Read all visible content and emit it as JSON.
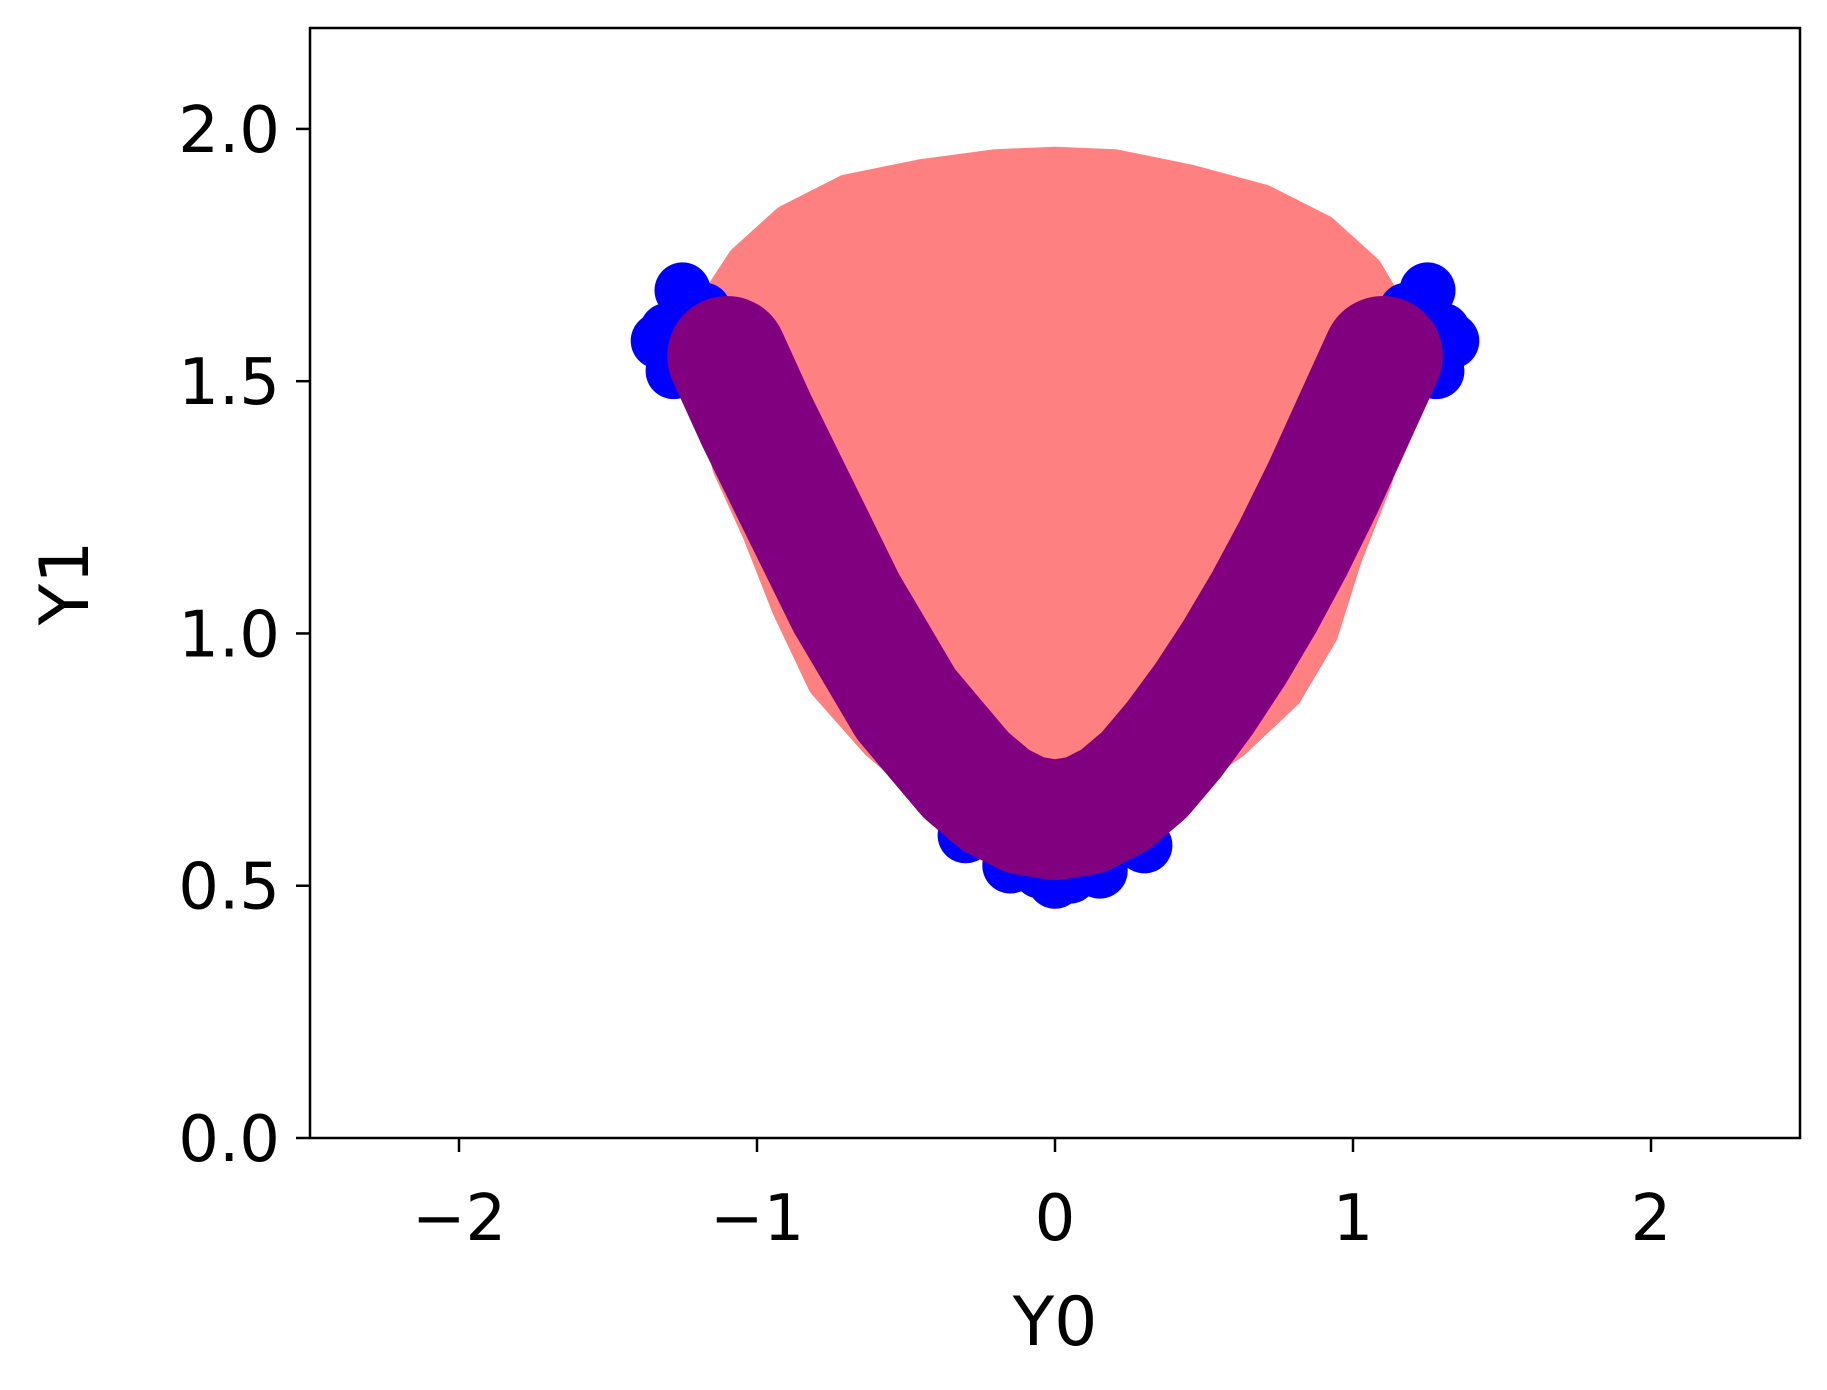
{
  "chart_data": {
    "type": "scatter",
    "title": "",
    "xlabel": "Y0",
    "ylabel": "Y1",
    "xlim": [
      -2.5,
      2.5
    ],
    "ylim": [
      0.0,
      2.2
    ],
    "x_ticks": [
      -2,
      -1,
      0,
      1,
      2
    ],
    "x_tick_labels": [
      "−2",
      "−1",
      "0",
      "1",
      "2"
    ],
    "y_ticks": [
      0.0,
      0.5,
      1.0,
      1.5,
      2.0
    ],
    "y_tick_labels": [
      "0.0",
      "0.5",
      "1.0",
      "1.5",
      "2.0"
    ],
    "grid": false,
    "legend": "none",
    "series": [
      {
        "color": "#ff8080",
        "kind": "filled-region",
        "outline": [
          [
            -1.15,
            1.65
          ],
          [
            -1.05,
            1.74
          ],
          [
            -0.9,
            1.82
          ],
          [
            -0.7,
            1.88
          ],
          [
            -0.45,
            1.91
          ],
          [
            -0.2,
            1.93
          ],
          [
            0.0,
            1.935
          ],
          [
            0.2,
            1.93
          ],
          [
            0.45,
            1.9
          ],
          [
            0.7,
            1.86
          ],
          [
            0.9,
            1.8
          ],
          [
            1.05,
            1.72
          ],
          [
            1.15,
            1.62
          ],
          [
            1.15,
            1.45
          ],
          [
            1.08,
            1.3
          ],
          [
            0.98,
            1.15
          ],
          [
            0.9,
            1.0
          ],
          [
            0.78,
            0.88
          ],
          [
            0.6,
            0.78
          ],
          [
            0.4,
            0.7
          ],
          [
            0.2,
            0.6
          ],
          [
            0.0,
            0.57
          ],
          [
            -0.2,
            0.6
          ],
          [
            -0.4,
            0.68
          ],
          [
            -0.6,
            0.78
          ],
          [
            -0.78,
            0.9
          ],
          [
            -0.9,
            1.05
          ],
          [
            -1.0,
            1.2
          ],
          [
            -1.1,
            1.33
          ],
          [
            -1.17,
            1.5
          ]
        ]
      },
      {
        "color": "#0000ff",
        "kind": "points",
        "points": [
          [
            -1.3,
            1.6
          ],
          [
            -1.25,
            1.68
          ],
          [
            -1.2,
            1.55
          ],
          [
            -1.28,
            1.52
          ],
          [
            -1.18,
            1.64
          ],
          [
            -1.33,
            1.58
          ],
          [
            -1.22,
            1.6
          ],
          [
            1.3,
            1.6
          ],
          [
            1.25,
            1.68
          ],
          [
            1.2,
            1.55
          ],
          [
            1.28,
            1.52
          ],
          [
            1.18,
            1.64
          ],
          [
            1.33,
            1.58
          ],
          [
            1.22,
            1.6
          ],
          [
            -0.3,
            0.6
          ],
          [
            -0.15,
            0.54
          ],
          [
            0.0,
            0.51
          ],
          [
            0.15,
            0.53
          ],
          [
            0.3,
            0.58
          ],
          [
            0.05,
            0.52
          ],
          [
            -0.05,
            0.53
          ]
        ]
      },
      {
        "color": "#800080",
        "kind": "band",
        "points": [
          [
            -1.1,
            1.55
          ],
          [
            -1.0,
            1.42
          ],
          [
            -0.9,
            1.3
          ],
          [
            -0.8,
            1.18
          ],
          [
            -0.7,
            1.06
          ],
          [
            -0.6,
            0.96
          ],
          [
            -0.5,
            0.86
          ],
          [
            -0.4,
            0.79
          ],
          [
            -0.3,
            0.72
          ],
          [
            -0.2,
            0.67
          ],
          [
            -0.1,
            0.64
          ],
          [
            0.0,
            0.63
          ],
          [
            0.1,
            0.64
          ],
          [
            0.2,
            0.67
          ],
          [
            0.3,
            0.72
          ],
          [
            0.4,
            0.79
          ],
          [
            0.5,
            0.87
          ],
          [
            0.6,
            0.96
          ],
          [
            0.7,
            1.06
          ],
          [
            0.8,
            1.17
          ],
          [
            0.9,
            1.29
          ],
          [
            1.0,
            1.42
          ],
          [
            1.1,
            1.55
          ]
        ]
      }
    ]
  }
}
